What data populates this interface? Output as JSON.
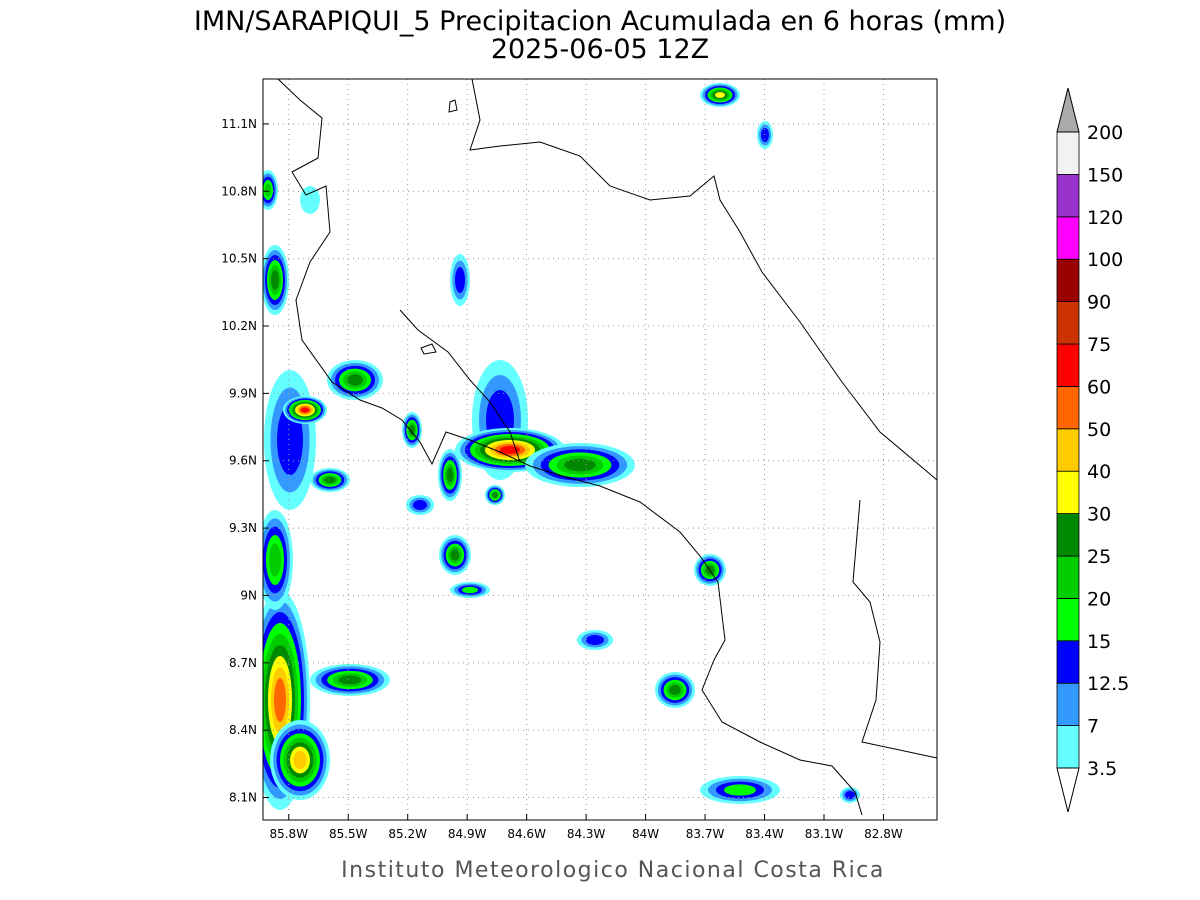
{
  "map": {
    "title": "IMN/SARAPIQUI_5 Precipitacion Acumulada en 6 horas (mm)",
    "subtitle": "2025-06-05 12Z",
    "footer": "Instituto Meteorologico Nacional Costa Rica",
    "xlim": [
      -85.93,
      -82.53
    ],
    "ylim": [
      8.0,
      11.3
    ],
    "xticks": [
      {
        "value": -85.8,
        "label": "85.8W"
      },
      {
        "value": -85.5,
        "label": "85.5W"
      },
      {
        "value": -85.2,
        "label": "85.2W"
      },
      {
        "value": -84.9,
        "label": "84.9W"
      },
      {
        "value": -84.6,
        "label": "84.6W"
      },
      {
        "value": -84.3,
        "label": "84.3W"
      },
      {
        "value": -84.0,
        "label": "84W"
      },
      {
        "value": -83.7,
        "label": "83.7W"
      },
      {
        "value": -83.4,
        "label": "83.4W"
      },
      {
        "value": -83.1,
        "label": "83.1W"
      },
      {
        "value": -82.8,
        "label": "82.8W"
      }
    ],
    "yticks": [
      {
        "value": 8.1,
        "label": "8.1N"
      },
      {
        "value": 8.4,
        "label": "8.4N"
      },
      {
        "value": 8.7,
        "label": "8.7N"
      },
      {
        "value": 9.0,
        "label": "9N"
      },
      {
        "value": 9.3,
        "label": "9.3N"
      },
      {
        "value": 9.6,
        "label": "9.6N"
      },
      {
        "value": 9.9,
        "label": "9.9N"
      },
      {
        "value": 10.2,
        "label": "10.2N"
      },
      {
        "value": 10.5,
        "label": "10.5N"
      },
      {
        "value": 10.8,
        "label": "10.8N"
      },
      {
        "value": 11.1,
        "label": "11.1N"
      }
    ],
    "grid": true,
    "colorbar": {
      "levels": [
        3.5,
        7,
        12.5,
        15,
        20,
        25,
        30,
        40,
        50,
        60,
        75,
        90,
        100,
        120,
        150,
        200
      ],
      "colors": [
        "#66ffff",
        "#3399ff",
        "#0000ff",
        "#00ff00",
        "#00cc00",
        "#008800",
        "#ffff00",
        "#ffcc00",
        "#ff6600",
        "#ff0000",
        "#cc3300",
        "#990000",
        "#ff00ff",
        "#9933cc",
        "#f2f2f2"
      ],
      "under_color": "#ffffff",
      "over_color": "#aaaaaa"
    }
  }
}
